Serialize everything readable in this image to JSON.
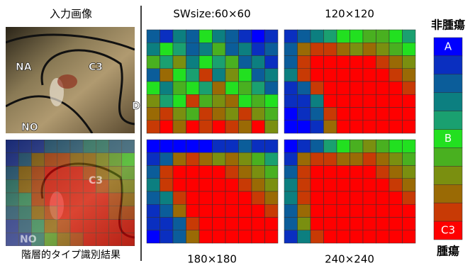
{
  "input_title": "入力画像",
  "result_title": "階層的タイプ識別結果",
  "photo_labels": [
    "NA",
    "C3",
    "D",
    "NO"
  ],
  "panels": [
    {
      "title": "SWsize:60×60",
      "grid": [
        [
          2,
          1,
          3,
          2,
          5,
          3,
          2,
          1,
          0,
          1
        ],
        [
          3,
          5,
          4,
          2,
          3,
          6,
          2,
          3,
          1,
          2
        ],
        [
          6,
          4,
          7,
          3,
          5,
          4,
          6,
          2,
          3,
          1
        ],
        [
          2,
          8,
          5,
          4,
          9,
          3,
          7,
          5,
          2,
          3
        ],
        [
          5,
          3,
          6,
          5,
          4,
          8,
          5,
          6,
          4,
          2
        ],
        [
          7,
          4,
          5,
          9,
          6,
          7,
          8,
          5,
          6,
          5
        ],
        [
          8,
          9,
          7,
          6,
          9,
          8,
          7,
          9,
          7,
          6
        ],
        [
          9,
          10,
          8,
          10,
          9,
          10,
          9,
          8,
          10,
          7
        ]
      ]
    },
    {
      "title": "120×120",
      "grid": [
        [
          1,
          2,
          3,
          4,
          5,
          5,
          6,
          6,
          5,
          4
        ],
        [
          2,
          8,
          9,
          9,
          8,
          7,
          8,
          7,
          6,
          5
        ],
        [
          2,
          9,
          10,
          10,
          10,
          10,
          10,
          9,
          8,
          7
        ],
        [
          3,
          9,
          10,
          10,
          10,
          10,
          10,
          10,
          9,
          8
        ],
        [
          1,
          2,
          9,
          10,
          10,
          10,
          10,
          10,
          10,
          9
        ],
        [
          1,
          1,
          3,
          10,
          10,
          10,
          10,
          10,
          10,
          10
        ],
        [
          0,
          1,
          2,
          9,
          10,
          10,
          10,
          10,
          10,
          10
        ],
        [
          0,
          0,
          1,
          8,
          10,
          10,
          10,
          10,
          10,
          10
        ]
      ]
    },
    {
      "title": "180×180",
      "grid": [
        [
          0,
          0,
          0,
          0,
          0,
          1,
          1,
          2,
          1,
          1
        ],
        [
          1,
          2,
          8,
          9,
          8,
          7,
          8,
          7,
          6,
          4
        ],
        [
          2,
          9,
          10,
          10,
          10,
          10,
          9,
          8,
          7,
          6
        ],
        [
          3,
          9,
          10,
          10,
          10,
          10,
          10,
          9,
          8,
          7
        ],
        [
          2,
          3,
          9,
          10,
          10,
          10,
          10,
          10,
          9,
          8
        ],
        [
          1,
          2,
          8,
          10,
          10,
          10,
          10,
          10,
          10,
          9
        ],
        [
          1,
          1,
          2,
          9,
          10,
          10,
          10,
          10,
          10,
          10
        ],
        [
          0,
          1,
          2,
          8,
          10,
          10,
          10,
          10,
          10,
          10
        ]
      ]
    },
    {
      "title": "240×240",
      "grid": [
        [
          0,
          1,
          2,
          4,
          5,
          6,
          7,
          6,
          5,
          5
        ],
        [
          1,
          8,
          9,
          9,
          8,
          8,
          9,
          8,
          7,
          6
        ],
        [
          2,
          9,
          10,
          10,
          10,
          10,
          10,
          9,
          8,
          7
        ],
        [
          3,
          9,
          10,
          10,
          10,
          10,
          10,
          10,
          9,
          8
        ],
        [
          3,
          9,
          10,
          10,
          10,
          10,
          10,
          10,
          10,
          9
        ],
        [
          2,
          8,
          10,
          10,
          10,
          10,
          10,
          10,
          10,
          10
        ],
        [
          2,
          7,
          10,
          10,
          10,
          10,
          10,
          10,
          10,
          10
        ],
        [
          1,
          3,
          9,
          10,
          10,
          10,
          10,
          10,
          10,
          10
        ]
      ]
    }
  ],
  "result_grid": [
    [
      1,
      1,
      1,
      2,
      2,
      2,
      3,
      3,
      2,
      2
    ],
    [
      1,
      2,
      8,
      9,
      9,
      8,
      8,
      7,
      6,
      5
    ],
    [
      2,
      8,
      9,
      10,
      10,
      10,
      9,
      8,
      7,
      6
    ],
    [
      3,
      8,
      9,
      10,
      10,
      10,
      10,
      9,
      8,
      7
    ],
    [
      3,
      4,
      9,
      10,
      10,
      10,
      10,
      10,
      9,
      8
    ],
    [
      2,
      3,
      8,
      9,
      10,
      10,
      10,
      10,
      9,
      9
    ],
    [
      1,
      2,
      4,
      8,
      9,
      10,
      10,
      10,
      10,
      10
    ],
    [
      1,
      1,
      3,
      6,
      8,
      9,
      10,
      10,
      10,
      10
    ]
  ],
  "colorbar": {
    "top_label": "非腫瘍",
    "bottom_label": "腫瘍",
    "colors": [
      "#0000ff",
      "#0a2fc0",
      "#0b5d9a",
      "#0c7f80",
      "#1aa070",
      "#22e020",
      "#49b020",
      "#7a8f10",
      "#9a6a05",
      "#c83a05",
      "#ff0000"
    ],
    "labels": [
      {
        "level": 0,
        "text": "A"
      },
      {
        "level": 5,
        "text": "B"
      },
      {
        "level": 10,
        "text": "C3"
      }
    ]
  }
}
